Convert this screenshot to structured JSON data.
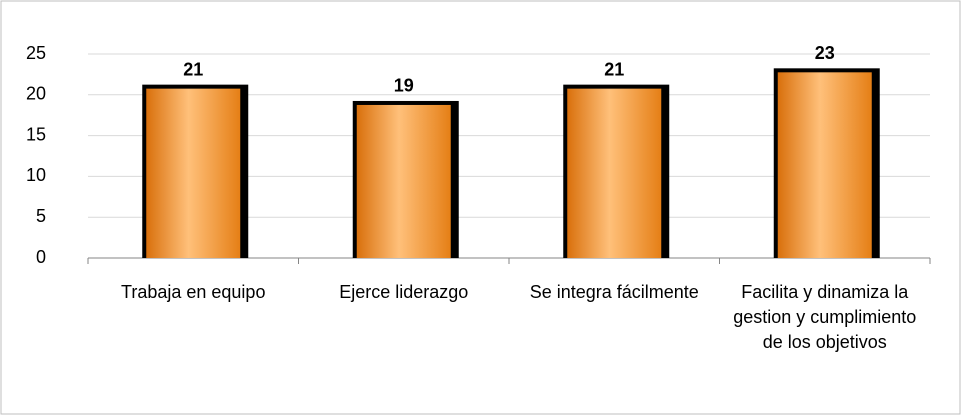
{
  "chart_data": {
    "type": "bar",
    "categories": [
      "Trabaja en equipo",
      "Ejerce liderazgo",
      "Se integra fácilmente",
      "Facilita y dinamiza la gestion y cumplimiento de los objetivos"
    ],
    "values": [
      21,
      19,
      21,
      23
    ],
    "color": "#f7961e",
    "ylim": [
      0,
      25
    ],
    "yticks": [
      0,
      5,
      10,
      15,
      20,
      25
    ],
    "grid": true
  }
}
